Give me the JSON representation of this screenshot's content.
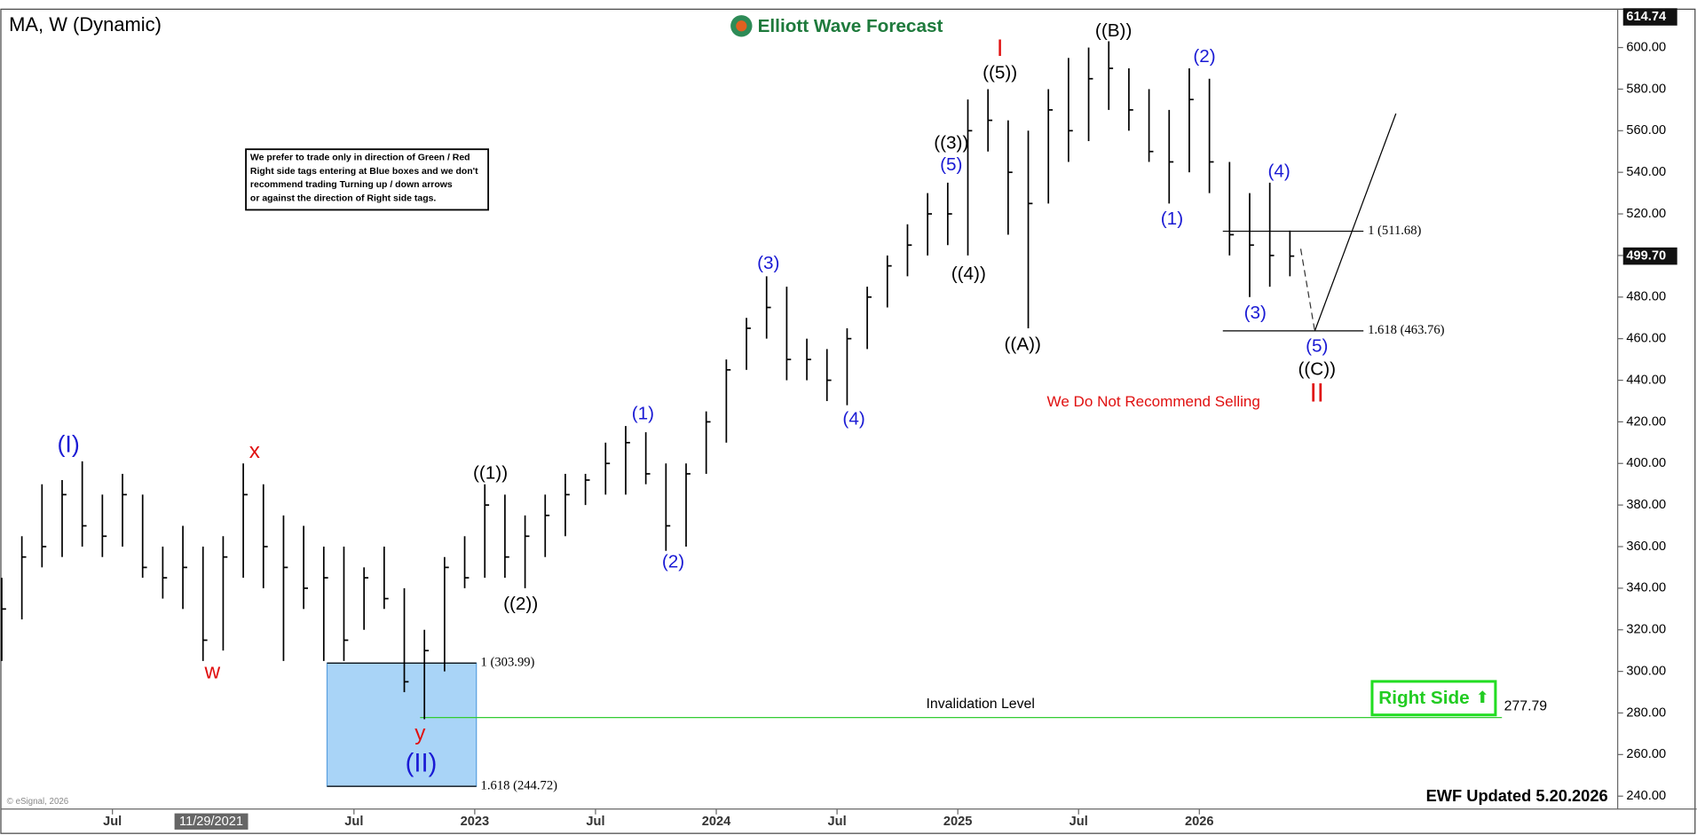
{
  "chart_data": {
    "type": "ohlc",
    "title": "MA, W (Dynamic)",
    "brand": "Elliott Wave Forecast",
    "note": [
      "We prefer to trade only in direction of Green / Red",
      "Right side tags entering at Blue boxes and we don't",
      "recommend trading Turning up / down arrows",
      "or against the direction of Right side tags."
    ],
    "warning": "We Do Not Recommend Selling",
    "right_side": "Right Side",
    "updated": "EWF Updated 5.20.2026",
    "copyright": "© eSignal, 2026",
    "cursor_label": "11/29/2021",
    "color": "#000000",
    "x": [
      "2021-01",
      "2021-02",
      "2021-03",
      "2021-04",
      "2021-05",
      "2021-06",
      "2021-07",
      "2021-08",
      "2021-09",
      "2021-10",
      "2021-11",
      "2021-12",
      "2022-01",
      "2022-02",
      "2022-03",
      "2022-04",
      "2022-05",
      "2022-06",
      "2022-07",
      "2022-08",
      "2022-09",
      "2022-10",
      "2022-11",
      "2022-12",
      "2023-01",
      "2023-02",
      "2023-03",
      "2023-04",
      "2023-05",
      "2023-06",
      "2023-07",
      "2023-08",
      "2023-09",
      "2023-10",
      "2023-11",
      "2023-12",
      "2024-01",
      "2024-02",
      "2024-03",
      "2024-04",
      "2024-05",
      "2024-06",
      "2024-07",
      "2024-08",
      "2024-09",
      "2024-10",
      "2024-11",
      "2024-12",
      "2025-01",
      "2025-02",
      "2025-03",
      "2025-04",
      "2025-05",
      "2025-06",
      "2025-07",
      "2025-08",
      "2025-09",
      "2025-10",
      "2025-11",
      "2025-12",
      "2026-01",
      "2026-02",
      "2026-03",
      "2026-04",
      "2026-05"
    ],
    "high": [
      345,
      365,
      390,
      392,
      401,
      385,
      395,
      385,
      360,
      370,
      360,
      365,
      400,
      390,
      375,
      370,
      360,
      360,
      350,
      360,
      340,
      320,
      355,
      365,
      390,
      385,
      375,
      385,
      395,
      395,
      410,
      418,
      415,
      400,
      400,
      425,
      450,
      470,
      490,
      485,
      460,
      455,
      465,
      485,
      500,
      515,
      530,
      535,
      575,
      580,
      565,
      560,
      580,
      595,
      600,
      603,
      590,
      580,
      570,
      590,
      585,
      545,
      530,
      535,
      512
    ],
    "low": [
      305,
      325,
      350,
      355,
      360,
      355,
      360,
      345,
      335,
      330,
      305,
      310,
      345,
      340,
      305,
      330,
      305,
      305,
      320,
      330,
      290,
      277,
      300,
      340,
      345,
      345,
      340,
      355,
      365,
      380,
      385,
      385,
      390,
      358,
      360,
      395,
      410,
      445,
      460,
      440,
      440,
      430,
      428,
      455,
      475,
      490,
      500,
      505,
      500,
      550,
      510,
      465,
      525,
      545,
      555,
      570,
      560,
      545,
      525,
      540,
      530,
      500,
      480,
      485,
      490
    ],
    "close": [
      330,
      355,
      360,
      385,
      370,
      365,
      385,
      350,
      345,
      350,
      315,
      355,
      385,
      360,
      350,
      340,
      345,
      315,
      345,
      335,
      295,
      310,
      350,
      345,
      380,
      355,
      365,
      375,
      385,
      392,
      400,
      410,
      395,
      370,
      395,
      420,
      445,
      465,
      475,
      450,
      450,
      440,
      460,
      480,
      495,
      505,
      520,
      520,
      560,
      565,
      540,
      525,
      570,
      560,
      585,
      590,
      570,
      550,
      545,
      575,
      545,
      510,
      505,
      500,
      499.7
    ],
    "xlim": [
      "2021-01",
      "2027-10"
    ],
    "xticks": [
      {
        "value": "2021-07",
        "label": "Jul"
      },
      {
        "value": "2022-07",
        "label": "Jul"
      },
      {
        "value": "2023-01",
        "label": "2023"
      },
      {
        "value": "2023-07",
        "label": "Jul"
      },
      {
        "value": "2024-01",
        "label": "2024"
      },
      {
        "value": "2024-07",
        "label": "Jul"
      },
      {
        "value": "2025-01",
        "label": "2025"
      },
      {
        "value": "2025-07",
        "label": "Jul"
      },
      {
        "value": "2026-01",
        "label": "2026"
      }
    ],
    "ylim": [
      233.8,
      618.7
    ],
    "yticks": [
      {
        "value": 240,
        "label": "240.00"
      },
      {
        "value": 260,
        "label": "260.00"
      },
      {
        "value": 280,
        "label": "280.00"
      },
      {
        "value": 300,
        "label": "300.00"
      },
      {
        "value": 320,
        "label": "320.00"
      },
      {
        "value": 340,
        "label": "340.00"
      },
      {
        "value": 360,
        "label": "360.00"
      },
      {
        "value": 380,
        "label": "380.00"
      },
      {
        "value": 400,
        "label": "400.00"
      },
      {
        "value": 420,
        "label": "420.00"
      },
      {
        "value": 440,
        "label": "440.00"
      },
      {
        "value": 460,
        "label": "460.00"
      },
      {
        "value": 480,
        "label": "480.00"
      },
      {
        "value": 500,
        "label": "500.00"
      },
      {
        "value": 520,
        "label": "520.00"
      },
      {
        "value": 540,
        "label": "540.00"
      },
      {
        "value": 560,
        "label": "560.00"
      },
      {
        "value": 580,
        "label": "580.00"
      },
      {
        "value": 600,
        "label": "600.00"
      }
    ],
    "price_tags": [
      {
        "value": 614.74,
        "label": "614.74"
      },
      {
        "value": 499.7,
        "label": "499.70"
      }
    ],
    "levels": [
      {
        "value": 303.99,
        "label": "1 (303.99)"
      },
      {
        "value": 244.72,
        "label": "1.618 (244.72)"
      },
      {
        "value": 511.68,
        "label": "1 (511.68)"
      },
      {
        "value": 463.76,
        "label": "1.618 (463.76)"
      }
    ],
    "invalidation": {
      "text": "Invalidation Level",
      "value": 277.79,
      "color": "#33cc33"
    },
    "annotations": [
      {
        "text": "(I)",
        "color": "#1a1ad4"
      },
      {
        "text": "w",
        "color": "#e01010"
      },
      {
        "text": "x",
        "color": "#e01010"
      },
      {
        "text": "y",
        "color": "#e01010"
      },
      {
        "text": "(II)",
        "color": "#1a1ad4"
      },
      {
        "text": "((1))",
        "color": "#000000"
      },
      {
        "text": "((2))",
        "color": "#000000"
      },
      {
        "text": "(1)",
        "color": "#1a1ad4"
      },
      {
        "text": "(2)",
        "color": "#1a1ad4"
      },
      {
        "text": "(3)",
        "color": "#1a1ad4"
      },
      {
        "text": "(4)",
        "color": "#1a1ad4"
      },
      {
        "text": "(5)",
        "color": "#1a1ad4"
      },
      {
        "text": "((3))",
        "color": "#000000"
      },
      {
        "text": "((4))",
        "color": "#000000"
      },
      {
        "text": "((5))",
        "color": "#000000"
      },
      {
        "text": "I",
        "color": "#e01010"
      },
      {
        "text": "((A))",
        "color": "#000000"
      },
      {
        "text": "((B))",
        "color": "#000000"
      },
      {
        "text": "(2)",
        "color": "#1a1ad4"
      },
      {
        "text": "(1)",
        "color": "#1a1ad4"
      },
      {
        "text": "(4)",
        "color": "#1a1ad4"
      },
      {
        "text": "(3)",
        "color": "#1a1ad4"
      },
      {
        "text": "(5)",
        "color": "#1a1ad4"
      },
      {
        "text": "((C))",
        "color": "#000000"
      },
      {
        "text": "II",
        "color": "#e01010"
      }
    ]
  }
}
